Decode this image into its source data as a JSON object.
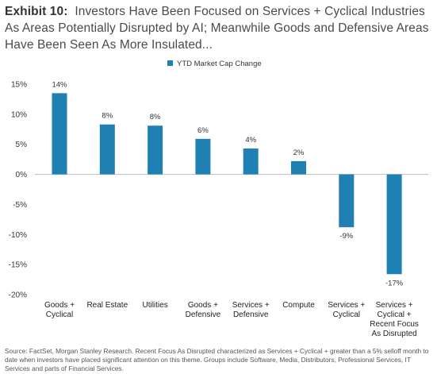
{
  "header": {
    "exhibit": "Exhibit 10:",
    "title": "Investors Have Been Focused on Services + Cyclical Industries As Areas Potentially Disrupted by AI; Meanwhile Goods and Defensive Areas Have Been Seen As More Insulated..."
  },
  "source": "Source: FactSet, Morgan Stanley Research. Recent Focus As Disrupted characterized as Services + Cyclical + greater than a 5% selloff month to date when investors have placed significant attention on this theme. Groups include Software, Media, Distributors, Professional Services, IT Services and parts of Financial Services.",
  "colors": {
    "bar": "#1f80b4",
    "zero_line": "#bdbdbd"
  },
  "chart_data": {
    "type": "bar",
    "legend": "YTD Market Cap Change",
    "legend_position": "top-center",
    "categories": [
      [
        "Goods +",
        "Cyclical"
      ],
      [
        "Real Estate"
      ],
      [
        "Utilities"
      ],
      [
        "Goods +",
        "Defensive"
      ],
      [
        "Services +",
        "Defensive"
      ],
      [
        "Compute"
      ],
      [
        "Services +",
        "Cyclical"
      ],
      [
        "Services +",
        "Cyclical +",
        "Recent Focus",
        "As Disrupted"
      ]
    ],
    "series": [
      {
        "name": "YTD Market Cap Change",
        "values": [
          13.5,
          8.3,
          8.1,
          5.9,
          4.3,
          2.2,
          -8.8,
          -16.6
        ],
        "labels": [
          "14%",
          "8%",
          "8%",
          "6%",
          "4%",
          "2%",
          "-9%",
          "-17%"
        ]
      }
    ],
    "yticks": [
      "15%",
      "10%",
      "5%",
      "0%",
      "-5%",
      "-10%",
      "-15%",
      "-20%"
    ],
    "ylim": [
      -20,
      15
    ],
    "grid": false
  }
}
